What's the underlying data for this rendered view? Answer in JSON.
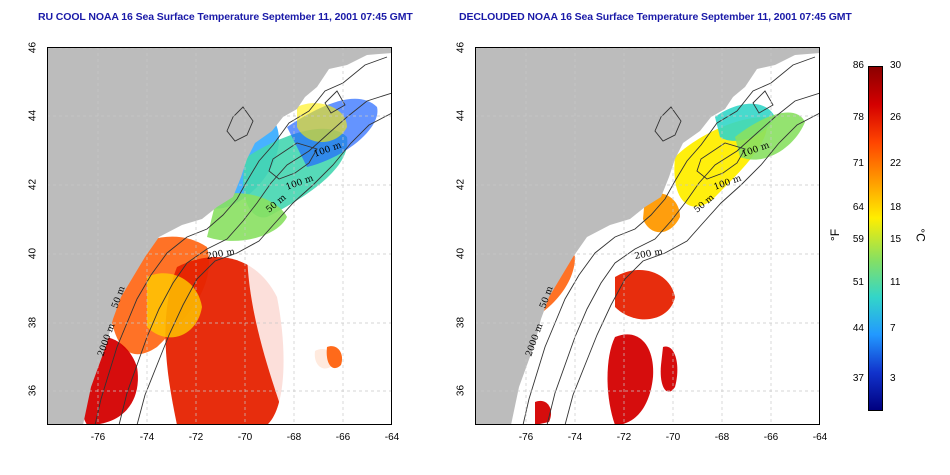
{
  "maps": [
    {
      "id": "left",
      "title": "RU COOL NOAA 16 Sea Surface Temperature September 11, 2001 07:45 GMT",
      "x_ticks": [
        "-76",
        "-74",
        "-72",
        "-70",
        "-68",
        "-66",
        "-64"
      ],
      "y_ticks": [
        "36",
        "38",
        "40",
        "42",
        "44",
        "46"
      ],
      "contour_labels": [
        "100 m",
        "100 m",
        "50 m",
        "200 m",
        "50 m",
        "2000 m"
      ]
    },
    {
      "id": "right",
      "title": "DECLOUDED NOAA 16 Sea Surface Temperature September 11, 2001 07:45 GMT",
      "x_ticks": [
        "-76",
        "-74",
        "-72",
        "-70",
        "-68",
        "-66",
        "-64"
      ],
      "y_ticks": [
        "36",
        "38",
        "40",
        "42",
        "44",
        "46"
      ],
      "contour_labels": [
        "100 m",
        "100 m",
        "50 m",
        "200 m",
        "50 m",
        "2000 m"
      ]
    }
  ],
  "colorbar": {
    "fahrenheit_labels": [
      "86",
      "78",
      "71",
      "64",
      "59",
      "51",
      "44",
      "37"
    ],
    "celsius_labels": [
      "30",
      "26",
      "22",
      "18",
      "15",
      "11",
      "7",
      "3"
    ],
    "fahrenheit_unit": "°F",
    "celsius_unit": "°C",
    "colors": [
      "#8b0000",
      "#d40000",
      "#ff4500",
      "#ff9900",
      "#ffee00",
      "#88e060",
      "#33d6c8",
      "#2299ff",
      "#1133cc",
      "#000080"
    ]
  },
  "colors": {
    "title": "#1a1aa8",
    "land": "#bcbcbc",
    "grid": "#c8c8c8"
  }
}
